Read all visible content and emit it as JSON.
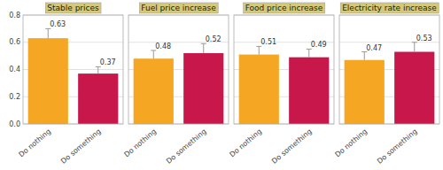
{
  "chart_data": [
    {
      "type": "bar",
      "title": "Stable prices",
      "categories": [
        "Do nothing",
        "Do something"
      ],
      "values": [
        0.63,
        0.37
      ],
      "errors": [
        0.07,
        0.05
      ],
      "colors": [
        "#F5A623",
        "#C8174B"
      ],
      "ylim": [
        0.0,
        0.8
      ],
      "yticks": [
        {
          "value": 0.0,
          "label": "0.0"
        },
        0.2,
        0.4,
        0.6,
        0.8
      ],
      "grid": true,
      "data_labels": true
    },
    {
      "type": "bar",
      "title": "Fuel price increase",
      "categories": [
        "Do nothing",
        "Do something"
      ],
      "values": [
        0.48,
        0.52
      ],
      "errors": [
        0.06,
        0.07
      ],
      "colors": [
        "#F5A623",
        "#C8174B"
      ],
      "ylim": [
        0.0,
        0.8
      ],
      "yticks": [
        {
          "value": 0.0,
          "label": "0.0"
        },
        0.2,
        0.4,
        0.6,
        0.8
      ],
      "grid": true,
      "data_labels": true,
      "tick_labels": "x"
    },
    {
      "type": "bar",
      "title": "Food price increase",
      "categories": [
        "Do nothing",
        "Do something"
      ],
      "values": [
        0.51,
        0.49
      ],
      "errors": [
        0.06,
        0.06
      ],
      "colors": [
        "#F5A623",
        "#C8174B"
      ],
      "ylim": [
        0.0,
        0.8
      ],
      "yticks": [
        {
          "value": 0.0,
          "label": "0.0"
        },
        0.2,
        0.4,
        0.6,
        0.8
      ],
      "grid": true,
      "data_labels": true,
      "tick_labels": "x"
    },
    {
      "type": "bar",
      "title": "Electricity rate increase",
      "categories": [
        "Do nothing",
        "Do something"
      ],
      "values": [
        0.47,
        0.53
      ],
      "errors": [
        0.06,
        0.07
      ],
      "colors": [
        "#F5A623",
        "#C8174B"
      ],
      "ylim": [
        0.0,
        0.8
      ],
      "yticks": [
        {
          "value": 0.0,
          "label": "0.0"
        },
        0.2,
        0.4,
        0.6,
        0.8
      ],
      "grid": true,
      "data_labels": true,
      "tick_labels": "x"
    }
  ]
}
